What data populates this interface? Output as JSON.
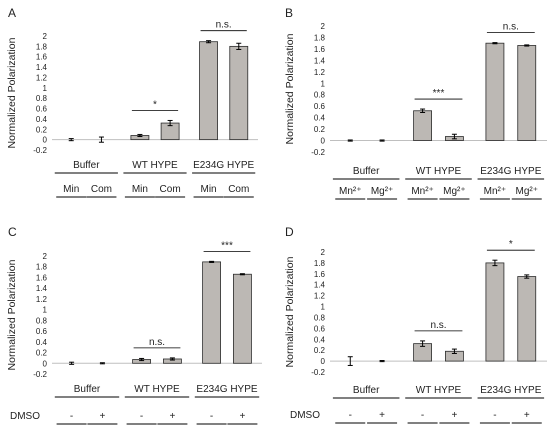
{
  "figure": {
    "bar_color": "#bcb8b4",
    "bar_stroke": "#2b2b2b",
    "text_color": "#222222"
  },
  "chart_data": [
    {
      "panel": "A",
      "type": "bar",
      "ylabel": "Normalized Polarization",
      "ylim": [
        -0.2,
        2
      ],
      "yticks": [
        "-0.2",
        "0",
        "0.2",
        "0.4",
        "0.6",
        "0.8",
        "1",
        "1.2",
        "1.4",
        "1.6",
        "1.8",
        "2"
      ],
      "groups": [
        "Buffer",
        "WT HYPE",
        "E234G HYPE"
      ],
      "sublabels": [
        "Min",
        "Com",
        "Min",
        "Com",
        "Min",
        "Com"
      ],
      "values": [
        0.0,
        0.0,
        0.08,
        0.32,
        1.89,
        1.8
      ],
      "errors": [
        0.02,
        0.05,
        0.02,
        0.05,
        0.02,
        0.06
      ],
      "significance": [
        {
          "group": 1,
          "label": "*"
        },
        {
          "group": 2,
          "label": "n.s."
        }
      ]
    },
    {
      "panel": "B",
      "type": "bar",
      "ylabel": "Normalized Polarization",
      "ylim": [
        -0.2,
        2
      ],
      "yticks": [
        "-0.2",
        "0",
        "0.2",
        "0.4",
        "0.6",
        "0.8",
        "1",
        "1.2",
        "1.4",
        "1.6",
        "1.8",
        "2"
      ],
      "groups": [
        "Buffer",
        "WT HYPE",
        "E234G HYPE"
      ],
      "sublabels": [
        "Mn²⁺",
        "Mg²⁺",
        "Mn²⁺",
        "Mg²⁺",
        "Mn²⁺",
        "Mg²⁺"
      ],
      "values": [
        0.0,
        0.0,
        0.52,
        0.07,
        1.7,
        1.66
      ],
      "errors": [
        0.01,
        0.01,
        0.03,
        0.04,
        0.01,
        0.01
      ],
      "significance": [
        {
          "group": 1,
          "label": "***"
        },
        {
          "group": 2,
          "label": "n.s."
        }
      ]
    },
    {
      "panel": "C",
      "type": "bar",
      "ylabel": "Normalized Polarization",
      "ylim": [
        -0.2,
        2
      ],
      "yticks": [
        "-0.2",
        "0",
        "0.2",
        "0.4",
        "0.6",
        "0.8",
        "1",
        "1.2",
        "1.4",
        "1.6",
        "1.8",
        "2"
      ],
      "xprefix": "DMSO",
      "groups": [
        "Buffer",
        "WT HYPE",
        "E234G HYPE"
      ],
      "sublabels": [
        "-",
        "+",
        "-",
        "+",
        "-",
        "+"
      ],
      "values": [
        0.0,
        0.0,
        0.07,
        0.08,
        1.89,
        1.66
      ],
      "errors": [
        0.02,
        0.01,
        0.02,
        0.02,
        0.01,
        0.01
      ],
      "significance": [
        {
          "group": 1,
          "label": "n.s."
        },
        {
          "group": 2,
          "label": "***"
        }
      ]
    },
    {
      "panel": "D",
      "type": "bar",
      "ylabel": "Normalized Polarization",
      "ylim": [
        -0.2,
        2
      ],
      "yticks": [
        "-0.2",
        "0",
        "0.2",
        "0.4",
        "0.6",
        "0.8",
        "1",
        "1.2",
        "1.4",
        "1.6",
        "1.8",
        "2"
      ],
      "xprefix": "DMSO",
      "groups": [
        "Buffer",
        "WT HYPE",
        "E234G HYPE"
      ],
      "sublabels": [
        "-",
        "+",
        "-",
        "+",
        "-",
        "+"
      ],
      "values": [
        0.0,
        0.0,
        0.32,
        0.18,
        1.8,
        1.55
      ],
      "errors": [
        0.08,
        0.01,
        0.05,
        0.04,
        0.05,
        0.03
      ],
      "significance": [
        {
          "group": 1,
          "label": "n.s."
        },
        {
          "group": 2,
          "label": "*"
        }
      ]
    }
  ]
}
